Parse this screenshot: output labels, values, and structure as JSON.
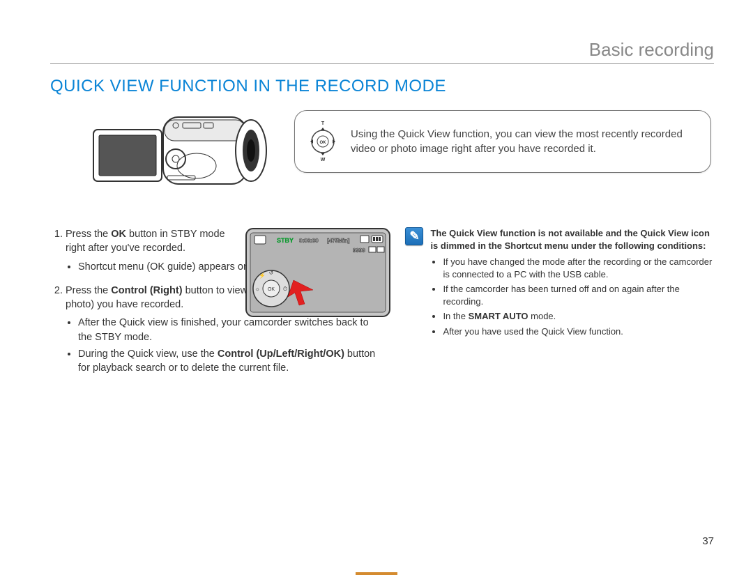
{
  "header": {
    "section": "Basic recording"
  },
  "title": "QUICK VIEW FUNCTION IN THE RECORD MODE",
  "info_box": {
    "text": "Using the Quick View function, you can view the most recently recorded video or photo image right after you have recorded it.",
    "dpad": {
      "ok": "OK",
      "t": "T",
      "w": "W"
    }
  },
  "lcd": {
    "stby": "STBY",
    "time": "0:00:00",
    "remain": "[475Min]",
    "count": "9999"
  },
  "steps": [
    {
      "lead": "Press the ",
      "bold1": "OK",
      "after1": " button in STBY mode right after you've recorded.",
      "bullets": [
        "Shortcut menu (OK guide) appears on the LCD screen."
      ]
    },
    {
      "lead": "Press the ",
      "bold1": "Control (Right)",
      "after1": " button to view the most recent video (or photo) you have recorded.",
      "bullets": [
        "After the Quick view is finished, your camcorder switches back to the STBY mode.",
        "During the Quick view, use the <b>Control (Up/Left/Right/OK)</b> button for playback search or to delete the current file."
      ]
    }
  ],
  "note": {
    "heading": "The Quick View function is not available and the Quick View icon is dimmed in the Shortcut menu under the following conditions:",
    "bullets": [
      "If you have changed the mode after the recording or the camcorder is connected to a PC with the USB cable.",
      "If the camcorder has been turned off and on again after the recording.",
      "In the <b>SMART AUTO</b> mode.",
      "After you have used the Quick View function."
    ]
  },
  "page_number": "37",
  "colors": {
    "title": "#0a84d6",
    "header_gray": "#888888",
    "note_icon_bg": "#2a7fc9",
    "stby_green": "#0b9a2e",
    "pointer_red": "#e22020",
    "footer": "#d48b2f"
  }
}
